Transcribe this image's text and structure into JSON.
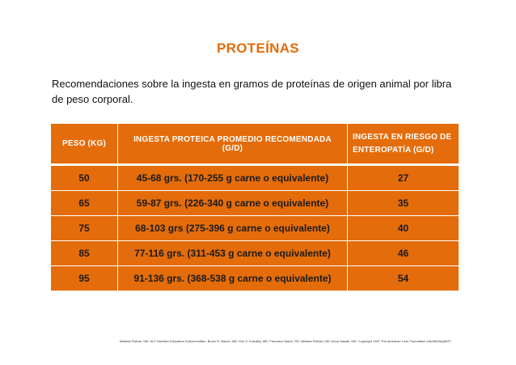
{
  "title": "PROTEÍNAS",
  "intro": "Recomendaciones sobre la ingesta en gramos de proteínas de origen animal por libra de peso corporal.",
  "table": {
    "headers": {
      "peso": "PESO (KG)",
      "ingesta": "INGESTA PROTEICA PROMEDIO RECOMENDADA (G/D)",
      "riesgo": "INGESTA EN RIESGO DE ENTEROPATÍA (G/D)"
    },
    "rows": [
      {
        "peso": "50",
        "ingesta": "45-68 grs. (170-255 g carne o equivalente)",
        "riesgo": "27"
      },
      {
        "peso": "65",
        "ingesta": "59-87 grs. (226-340 g  carne o equivalente)",
        "riesgo": "35"
      },
      {
        "peso": "75",
        "ingesta": "68-103 grs (275-396 g  carne o equivalente)",
        "riesgo": "40"
      },
      {
        "peso": "85",
        "ingesta": "77-116 grs. (311-453 g carne o equivalente)",
        "riesgo": "46"
      },
      {
        "peso": "95",
        "ingesta": "91-136 grs. (368-538 g carne o equivalente)",
        "riesgo": "54"
      }
    ]
  },
  "footnote": "Melissa Palmer, MD. ALF Nutrition Education Subcommittee: Bruce R. Bacon, MD, Kris V. Kowdley, MD, Francisco Marin, RD, Melissa Palmer, MD, Anna Sasaki, MD. Copyright 1997 The American Liver Foundation info/diet/hepB/97",
  "colors": {
    "accent": "#e46c0a",
    "header_text": "#ffffff",
    "cell_text": "#1a1a1a"
  }
}
